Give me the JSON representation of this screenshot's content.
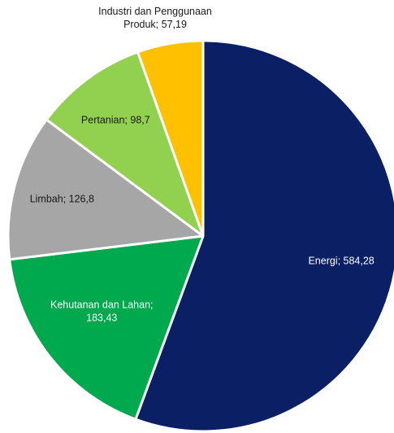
{
  "chart_data": {
    "type": "pie",
    "title": "",
    "legend": "none",
    "slices": [
      {
        "label_lines": [
          "Energi; 584,28"
        ],
        "name": "Energi",
        "value": 584.28,
        "color": "#0b1f64",
        "text_color": "#ffffff"
      },
      {
        "label_lines": [
          "Kehutanan dan Lahan;",
          "183,43"
        ],
        "name": "Kehutanan dan Lahan",
        "value": 183.43,
        "color": "#00a84e",
        "text_color": "#ffffff"
      },
      {
        "label_lines": [
          "Limbah; 126,8"
        ],
        "name": "Limbah",
        "value": 126.8,
        "color": "#a6a6a6",
        "text_color": "#1a1a1a"
      },
      {
        "label_lines": [
          "Pertanian; 98,7"
        ],
        "name": "Pertanian",
        "value": 98.7,
        "color": "#92d050",
        "text_color": "#1a1a1a"
      },
      {
        "label_lines": [
          "Industri dan Penggunaan",
          "Produk; 57,19"
        ],
        "name": "Industri dan Penggunaan Produk",
        "value": 57.19,
        "color": "#ffc000",
        "text_color": "#1a1a1a"
      }
    ]
  }
}
